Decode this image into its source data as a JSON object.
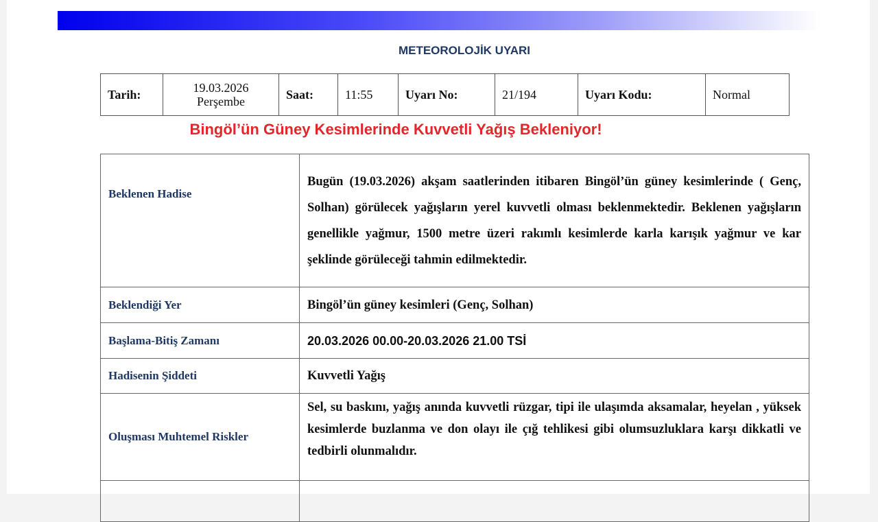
{
  "header": {
    "title": "METEOROLOJİK UYARI",
    "gradient_colors": [
      "#0000ee",
      "#ffffff"
    ]
  },
  "info": {
    "date_label": "Tarih:",
    "date_value": "19.03.2026",
    "day_value": "Perşembe",
    "time_label": "Saat:",
    "time_value": "11:55",
    "warning_no_label": "Uyarı No:",
    "warning_no_value": "21/194",
    "warning_code_label": "Uyarı Kodu:",
    "warning_code_value": "Normal"
  },
  "headline": {
    "text": "Bingöl’ün Güney Kesimlerinde Kuvvetli  Yağış Bekleniyor!",
    "color": "#e3262b"
  },
  "rows": [
    {
      "label": "Beklenen Hadise",
      "value": "Bugün (19.03.2026) akşam saatlerinden itibaren Bingöl’ün güney kesimlerinde ( Genç, Solhan) görülecek yağışların yerel kuvvetli olması beklenmektedir. Beklenen yağışların genellikle yağmur, 1500 metre üzeri rakımlı kesimlerde karla karışık yağmur ve kar şeklinde görüleceği tahmin edilmektedir."
    },
    {
      "label": "Beklendiği Yer",
      "value": "Bingöl’ün güney kesimleri  (Genç, Solhan)"
    },
    {
      "label": "Başlama-Bitiş Zamanı",
      "value": "20.03.2026 00.00-20.03.2026 21.00 TSİ"
    },
    {
      "label": "Hadisenin Şiddeti",
      "value": "Kuvvetli Yağış"
    },
    {
      "label": "Oluşması Muhtemel Riskler",
      "value": "Sel, su baskını, yağış anında kuvvetli rüzgar, tipi ile ulaşımda aksamalar, heyelan , yüksek kesimlerde buzlanma ve don olayı ile çığ tehlikesi gibi  olumsuzluklara  karşı  dikkatli  ve tedbirli olunmalıdır."
    }
  ]
}
